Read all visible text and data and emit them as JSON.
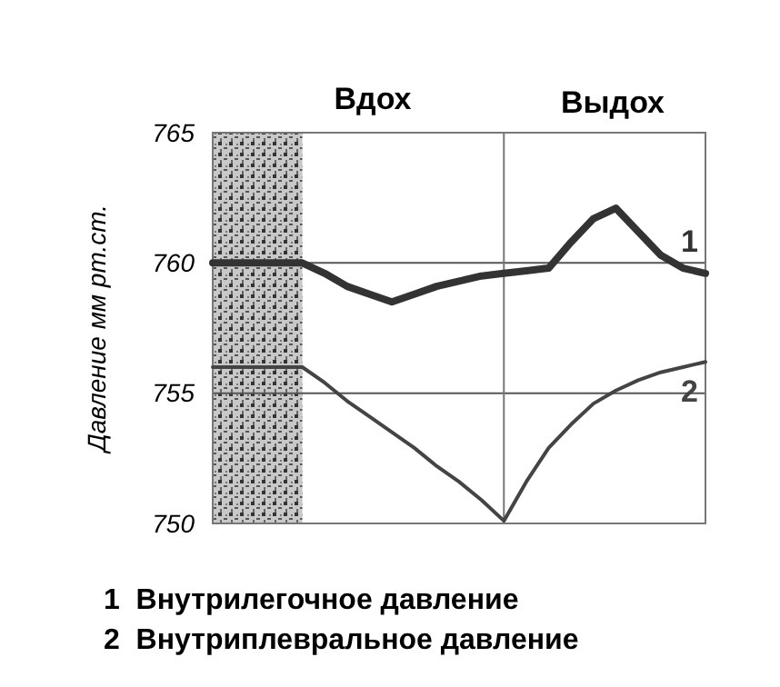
{
  "chart_data": {
    "type": "line",
    "ylabel": "Давление мм рт.ст.",
    "categories": [
      null,
      null,
      null,
      null,
      null,
      null,
      null,
      null,
      null,
      null,
      null,
      null,
      null,
      null,
      null,
      null,
      null,
      null,
      null,
      null,
      null,
      null,
      null
    ],
    "ylim": [
      750,
      765
    ],
    "yticks": [
      750,
      755,
      760,
      765
    ],
    "grid": true,
    "series": [
      {
        "name": "1",
        "color": "#333333",
        "values": [
          760,
          760,
          760,
          760,
          760,
          759.6,
          759.1,
          758.8,
          758.5,
          758.8,
          759.1,
          759.3,
          759.5,
          759.6,
          759.7,
          759.8,
          760.8,
          761.7,
          762.1,
          761.2,
          760.3,
          759.8,
          759.6
        ]
      },
      {
        "name": "2",
        "color": "#444444",
        "values": [
          756,
          756,
          756,
          756,
          756,
          755.4,
          754.7,
          754.1,
          753.5,
          752.9,
          752.2,
          751.6,
          750.9,
          750.1,
          751.6,
          752.9,
          753.8,
          754.6,
          755.1,
          755.5,
          755.8,
          756,
          756.2
        ]
      }
    ],
    "annotations": [
      "Вдох",
      "Выдох",
      "1  Внутрилегочное давление",
      "2  Внутриплевральное давление"
    ]
  }
}
